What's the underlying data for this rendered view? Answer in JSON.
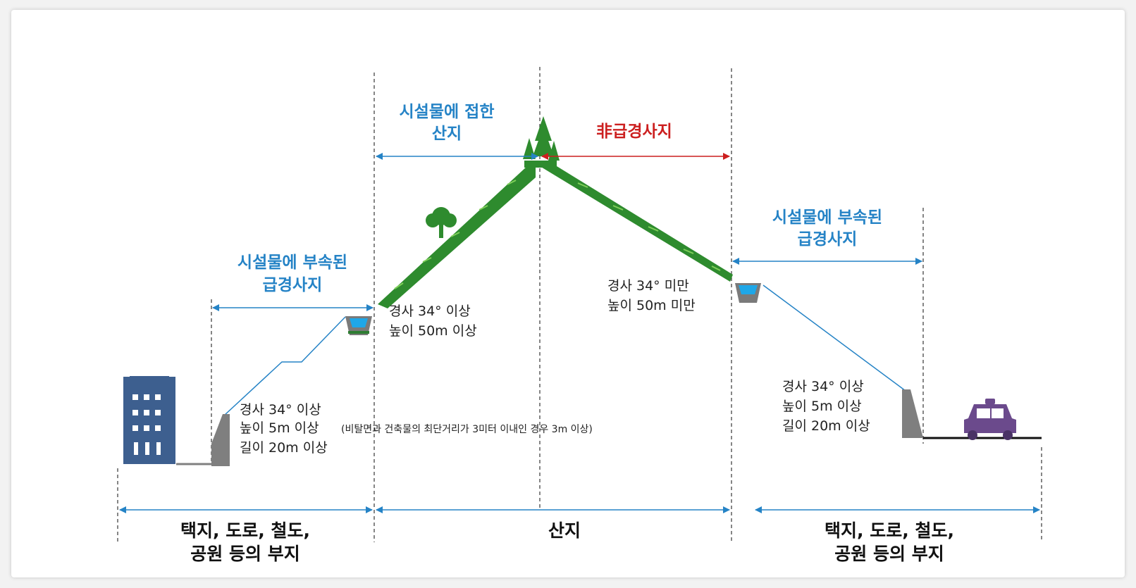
{
  "labels": {
    "attached_mountain": [
      "시설물에 접한",
      "산지"
    ],
    "non_steep": "非급경사지",
    "left_steep": [
      "시설물에 부속된",
      "급경사지"
    ],
    "right_steep": [
      "시설물에 부속된",
      "급경사지"
    ],
    "bottom_left": [
      "택지, 도로, 철도,",
      "공원 등의 부지"
    ],
    "bottom_center": "산지",
    "bottom_right": [
      "택지, 도로, 철도,",
      "공원 등의 부지"
    ]
  },
  "specs": {
    "mountain_left": [
      "경사 34° 이상",
      "높이 50m 이상"
    ],
    "mountain_right": [
      "경사 34° 미만",
      "높이 50m 미만"
    ],
    "left_facility": [
      "경사 34° 이상",
      "높이 5m 이상",
      "길이 20m 이상"
    ],
    "left_facility_note": "(비탈면과 건축물의 최단거리가 3미터 이내인 경우 3m 이상)",
    "right_facility": [
      "경사 34° 이상",
      "높이 5m 이상",
      "길이 20m 이상"
    ]
  },
  "colors": {
    "blue": "#2583c6",
    "red": "#cc1f1f",
    "forest": "#2e8b2e",
    "building": "#3d5f8f",
    "car": "#6b4a8c",
    "wall": "#7f7f7f",
    "water": "#1ea7e8"
  },
  "icons": [
    "building-icon",
    "car-icon",
    "tree-icon",
    "conifer-tree-icon",
    "ditch-icon",
    "retaining-wall-icon"
  ]
}
